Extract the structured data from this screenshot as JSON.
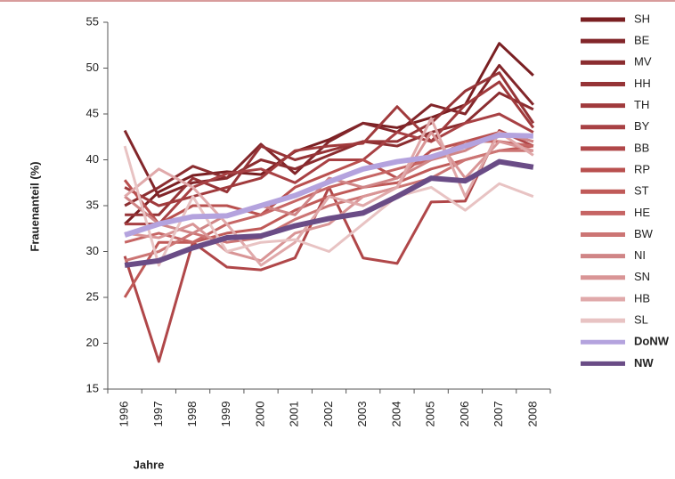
{
  "chart_data": {
    "type": "line",
    "y_label": "Frauenanteil (%)",
    "x_label": "Jahre",
    "categories": [
      "1996",
      "1997",
      "1998",
      "1999",
      "2000",
      "2001",
      "2002",
      "2003",
      "2004",
      "2005",
      "2006",
      "2007",
      "2008"
    ],
    "ylim": [
      15,
      55
    ],
    "yticks": [
      15,
      20,
      25,
      30,
      35,
      40,
      45,
      50,
      55
    ],
    "legend": "right",
    "series": [
      {
        "name": "SH",
        "color": "#7a1f22",
        "line_width": 3,
        "values": [
          33,
          36.5,
          38.3,
          38.7,
          38.4,
          40.9,
          42.2,
          44,
          43.5,
          44.6,
          46,
          52.7,
          49.2
        ]
      },
      {
        "name": "BE",
        "color": "#82262a",
        "line_width": 3,
        "values": [
          43.2,
          36,
          37.5,
          38,
          41.7,
          38.5,
          42,
          44,
          43,
          46,
          45,
          50.3,
          46
        ]
      },
      {
        "name": "MV",
        "color": "#8b2d30",
        "line_width": 3,
        "values": [
          35,
          37,
          39.3,
          38,
          40,
          39,
          40.5,
          42,
          41.5,
          43,
          44,
          47.3,
          45.5
        ]
      },
      {
        "name": "HH",
        "color": "#963437",
        "line_width": 3,
        "values": [
          34,
          34,
          38,
          36.5,
          41.5,
          40,
          41,
          42,
          42,
          44,
          47.5,
          49.5,
          44
        ]
      },
      {
        "name": "TH",
        "color": "#a03a3c",
        "line_width": 3,
        "values": [
          37,
          35,
          36,
          37,
          38,
          41,
          41.5,
          41.8,
          45.8,
          42,
          46,
          48.5,
          43.5
        ]
      },
      {
        "name": "BY",
        "color": "#a84144",
        "line_width": 3,
        "values": [
          33,
          33,
          37,
          38.5,
          39,
          37.5,
          40,
          40,
          43,
          42,
          44,
          45,
          43
        ]
      },
      {
        "name": "BB",
        "color": "#b04749",
        "line_width": 3,
        "values": [
          29.5,
          18,
          31,
          28.3,
          28,
          29.3,
          37,
          29.3,
          28.7,
          35.4,
          35.5,
          43.2,
          41.5
        ]
      },
      {
        "name": "RP",
        "color": "#b9504f",
        "line_width": 3,
        "values": [
          37.8,
          33,
          35,
          35,
          34,
          37,
          38.5,
          40,
          38,
          41,
          42,
          43,
          42
        ]
      },
      {
        "name": "ST",
        "color": "#c05a58",
        "line_width": 3,
        "values": [
          25,
          31,
          31,
          32,
          32.5,
          34.5,
          36,
          37,
          37.5,
          39,
          40,
          41,
          41.5
        ]
      },
      {
        "name": "HE",
        "color": "#c66564",
        "line_width": 3,
        "values": [
          31,
          32,
          31,
          33,
          34,
          35.5,
          37,
          38,
          39,
          40,
          42,
          42,
          41.5
        ]
      },
      {
        "name": "BW",
        "color": "#cc7574",
        "line_width": 3,
        "values": [
          29,
          30,
          32,
          31,
          31.5,
          33.5,
          35,
          36,
          37,
          38,
          40,
          41,
          41
        ]
      },
      {
        "name": "NI",
        "color": "#d08586",
        "line_width": 3,
        "values": [
          36,
          33,
          32,
          34,
          35,
          34,
          38,
          37,
          38,
          40,
          41,
          43,
          42
        ]
      },
      {
        "name": "SN",
        "color": "#d99596",
        "line_width": 3,
        "values": [
          32,
          31.5,
          33,
          30,
          29,
          32,
          33,
          36,
          37,
          43,
          38,
          42,
          41
        ]
      },
      {
        "name": "HB",
        "color": "#e0a9aa",
        "line_width": 3,
        "values": [
          36,
          39,
          37,
          33,
          28.5,
          31,
          36,
          35,
          37,
          44.5,
          36,
          43,
          40.5
        ]
      },
      {
        "name": "SL",
        "color": "#e8c3c3",
        "line_width": 3,
        "values": [
          41.5,
          28.5,
          36,
          30,
          31,
          31.3,
          30,
          33,
          36,
          37,
          34.5,
          37.4,
          36
        ]
      },
      {
        "name": "DoNW",
        "color": "#b4a3de",
        "line_width": 6,
        "values": [
          31.8,
          33,
          33.8,
          33.9,
          35,
          36.1,
          37.6,
          39,
          39.8,
          40.3,
          41.5,
          42.7,
          42.6
        ]
      },
      {
        "name": "NW",
        "color": "#6a4c86",
        "line_width": 6,
        "values": [
          28.5,
          29,
          30.4,
          31.5,
          31.7,
          32.8,
          33.6,
          34.2,
          36,
          38,
          37.7,
          39.8,
          39.2
        ]
      }
    ]
  }
}
